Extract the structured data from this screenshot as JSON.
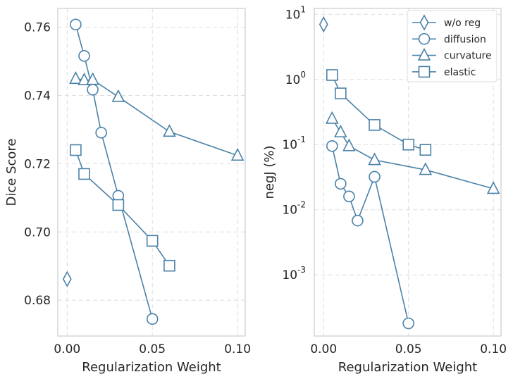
{
  "chart_data": [
    {
      "type": "line",
      "panel": "left",
      "xlabel": "Regularization Weight",
      "ylabel": "Dice Score",
      "xlim": [
        -0.0055,
        0.1045
      ],
      "ylim": [
        0.6695,
        0.7655
      ],
      "xticks": [
        0.0,
        0.05,
        0.1
      ],
      "xtick_labels": [
        "0.00",
        "0.05",
        "0.10"
      ],
      "yticks": [
        0.68,
        0.7,
        0.72,
        0.74,
        0.76
      ],
      "ytick_labels": [
        "0.68",
        "0.70",
        "0.72",
        "0.74",
        "0.76"
      ],
      "grid": true,
      "series": [
        {
          "name": "w/o reg",
          "marker": "diamond",
          "line": false,
          "x": [
            0.0
          ],
          "y": [
            0.6862
          ]
        },
        {
          "name": "diffusion",
          "marker": "circle",
          "line": true,
          "x": [
            0.005,
            0.01,
            0.015,
            0.02,
            0.03,
            0.05
          ],
          "y": [
            0.7608,
            0.7516,
            0.7417,
            0.7291,
            0.7106,
            0.6745
          ]
        },
        {
          "name": "curvature",
          "marker": "triangle",
          "line": true,
          "x": [
            0.005,
            0.01,
            0.015,
            0.03,
            0.06,
            0.1
          ],
          "y": [
            0.7449,
            0.7445,
            0.7446,
            0.7396,
            0.7294,
            0.7224
          ]
        },
        {
          "name": "elastic",
          "marker": "square",
          "line": true,
          "x": [
            0.005,
            0.01,
            0.03,
            0.05,
            0.06
          ],
          "y": [
            0.724,
            0.717,
            0.7079,
            0.6974,
            0.6901
          ]
        }
      ]
    },
    {
      "type": "line",
      "panel": "right",
      "xlabel": "Regularization Weight",
      "ylabel": "negJ (%)",
      "yscale": "log",
      "xlim": [
        -0.0055,
        0.1045
      ],
      "ylim": [
        0.000115,
        12.3
      ],
      "xticks": [
        0.0,
        0.05,
        0.1
      ],
      "xtick_labels": [
        "0.00",
        "0.05",
        "0.10"
      ],
      "yticks": [
        0.001,
        0.01,
        0.1,
        1,
        10
      ],
      "ytick_base": "10",
      "ytick_exponents": [
        "-3",
        "-2",
        "-1",
        "0",
        "1"
      ],
      "grid": true,
      "legend": {
        "position": "top-right",
        "labels": [
          "w/o reg",
          "diffusion",
          "curvature",
          "elastic"
        ]
      },
      "series": [
        {
          "name": "w/o reg",
          "marker": "diamond",
          "line": false,
          "x": [
            0.0
          ],
          "y": [
            7.0
          ]
        },
        {
          "name": "diffusion",
          "marker": "circle",
          "line": true,
          "x": [
            0.005,
            0.01,
            0.015,
            0.02,
            0.03,
            0.05
          ],
          "y": [
            0.095,
            0.025,
            0.016,
            0.0068,
            0.032,
            0.00018
          ]
        },
        {
          "name": "curvature",
          "marker": "triangle",
          "line": true,
          "x": [
            0.005,
            0.01,
            0.015,
            0.03,
            0.06,
            0.1
          ],
          "y": [
            0.25,
            0.155,
            0.095,
            0.058,
            0.041,
            0.021
          ]
        },
        {
          "name": "elastic",
          "marker": "square",
          "line": true,
          "x": [
            0.005,
            0.01,
            0.03,
            0.05,
            0.06
          ],
          "y": [
            1.17,
            0.61,
            0.2,
            0.1,
            0.083
          ]
        }
      ]
    }
  ],
  "style": {
    "series_color": "#4a82a8",
    "grid_color": "#dedede",
    "axis_color": "#cccccc",
    "text_color": "#262626",
    "marker_fill": "#ffffff"
  }
}
